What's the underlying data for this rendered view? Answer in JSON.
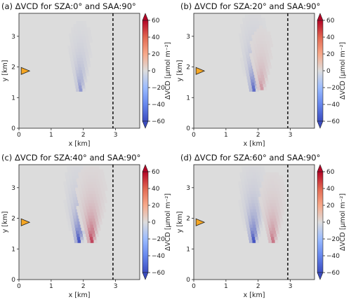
{
  "chart_data": [
    {
      "type": "heatmap",
      "title": "(a) ΔVCD for SZA:0° and SAA:90°",
      "sza": 0,
      "xlabel": "x [km]",
      "ylabel": "y [km]",
      "xlim": [
        0,
        3.75
      ],
      "ylim": [
        0,
        3.75
      ],
      "xticks": [
        0,
        1,
        2,
        3
      ],
      "yticks": [
        0,
        1,
        2,
        3
      ],
      "colorbar": {
        "label": "ΔVCD [μmol m⁻²]",
        "range": [
          -60,
          60
        ],
        "ticks": [
          -60,
          -40,
          -20,
          0,
          20,
          40,
          60
        ],
        "tick_labels": [
          "−60",
          "−40",
          "−20",
          "0",
          "20",
          "40",
          "60"
        ]
      },
      "vertical_dashed_line_x": 2.92,
      "marker": {
        "shape": "right-pointing triangle",
        "color": "#f5a623",
        "x": 0.2,
        "y": 1.87
      },
      "plume": {
        "negative": {
          "x": 1.85,
          "y_base": 1.2,
          "min": -30
        },
        "positive": null
      }
    },
    {
      "type": "heatmap",
      "title": "(b) ΔVCD for SZA:20° and SAA:90°",
      "sza": 20,
      "xlabel": "x [km]",
      "ylabel": "y [km]",
      "xlim": [
        0,
        3.75
      ],
      "ylim": [
        0,
        3.75
      ],
      "xticks": [
        0,
        1,
        2,
        3
      ],
      "yticks": [
        0,
        1,
        2,
        3
      ],
      "colorbar": {
        "label": "ΔVCD [μmol m⁻²]",
        "range": [
          -60,
          60
        ],
        "ticks": [
          -60,
          -40,
          -20,
          0,
          20,
          40,
          60
        ],
        "tick_labels": [
          "−60",
          "−40",
          "−20",
          "0",
          "20",
          "40",
          "60"
        ]
      },
      "vertical_dashed_line_x": 2.92,
      "marker": {
        "shape": "right-pointing triangle",
        "color": "#f5a623",
        "x": 0.2,
        "y": 1.87
      },
      "plume": {
        "negative": {
          "x": 1.8,
          "y_base": 1.2,
          "min": -50
        },
        "positive": {
          "x": 2.05,
          "y_base": 1.25,
          "max": 20
        }
      }
    },
    {
      "type": "heatmap",
      "title": "(c) ΔVCD for SZA:40° and SAA:90°",
      "sza": 40,
      "xlabel": "x [km]",
      "ylabel": "y [km]",
      "xlim": [
        0,
        3.75
      ],
      "ylim": [
        0,
        3.75
      ],
      "xticks": [
        0,
        1,
        2,
        3
      ],
      "yticks": [
        0,
        1,
        2,
        3
      ],
      "colorbar": {
        "label": "ΔVCD [μmol m⁻²]",
        "range": [
          -60,
          60
        ],
        "ticks": [
          -60,
          -40,
          -20,
          0,
          20,
          40,
          60
        ],
        "tick_labels": [
          "−60",
          "−40",
          "−20",
          "0",
          "20",
          "40",
          "60"
        ]
      },
      "vertical_dashed_line_x": 2.92,
      "marker": {
        "shape": "right-pointing triangle",
        "color": "#f5a623",
        "x": 0.2,
        "y": 1.87
      },
      "plume": {
        "negative": {
          "x": 1.8,
          "y_base": 1.2,
          "min": -60
        },
        "positive": {
          "x": 2.2,
          "y_base": 1.2,
          "max": 45
        }
      }
    },
    {
      "type": "heatmap",
      "title": "(d) ΔVCD for SZA:60° and SAA:90°",
      "sza": 60,
      "xlabel": "x [km]",
      "ylabel": "y [km]",
      "xlim": [
        0,
        3.75
      ],
      "ylim": [
        0,
        3.75
      ],
      "xticks": [
        0,
        1,
        2,
        3
      ],
      "yticks": [
        0,
        1,
        2,
        3
      ],
      "colorbar": {
        "label": "ΔVCD [μmol m⁻²]",
        "range": [
          -60,
          60
        ],
        "ticks": [
          -60,
          -40,
          -20,
          0,
          20,
          40,
          60
        ],
        "tick_labels": [
          "−60",
          "−40",
          "−20",
          "0",
          "20",
          "40",
          "60"
        ]
      },
      "vertical_dashed_line_x": 2.92,
      "marker": {
        "shape": "right-pointing triangle",
        "color": "#f5a623",
        "x": 0.2,
        "y": 1.87
      },
      "plume": {
        "negative": {
          "x": 1.8,
          "y_base": 1.2,
          "min": -60
        },
        "positive": {
          "x": 2.4,
          "y_base": 1.2,
          "max": 30
        }
      }
    }
  ],
  "colors": {
    "background": "#dcdcdc",
    "negative_max": "#3b4cc0",
    "positive_max": "#b40426",
    "marker": "#f5a623",
    "dashed_line": "#000000"
  }
}
